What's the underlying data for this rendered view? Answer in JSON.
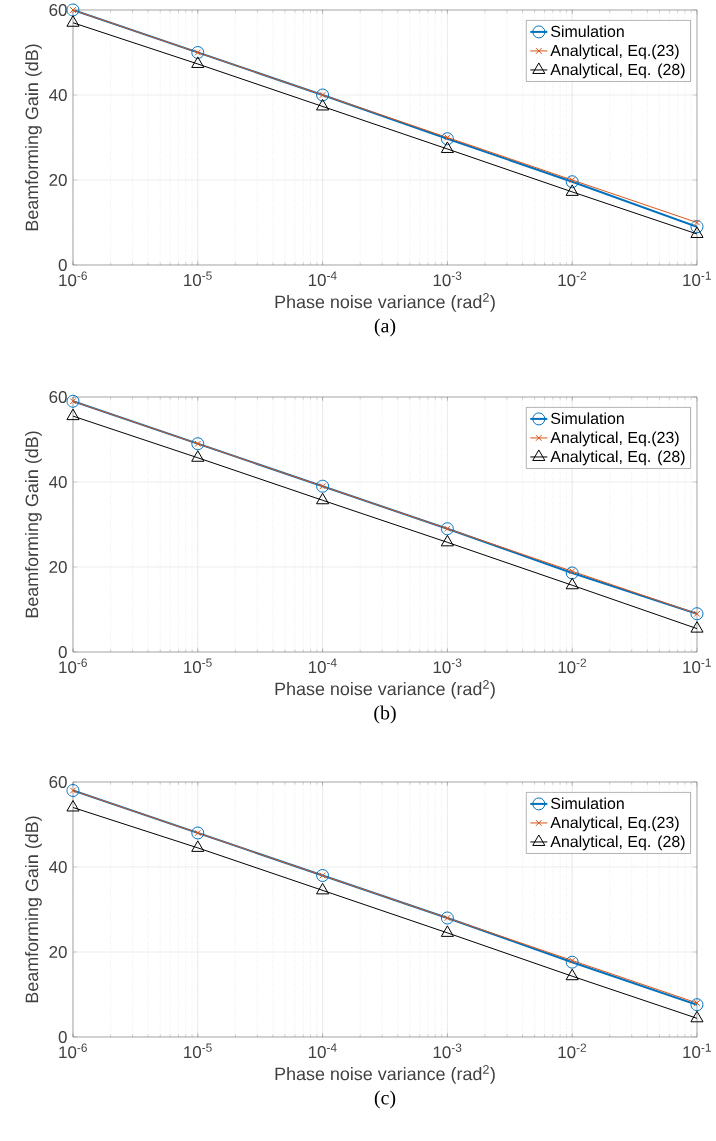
{
  "chart_data": [
    {
      "type": "line",
      "xlabel": "Phase noise variance (rad$^{2}$)",
      "ylabel": "Beamforming Gain (dB)",
      "annotations": [
        "(a)"
      ],
      "x": [
        1e-06,
        1e-05,
        0.0001,
        0.001,
        0.01,
        0.1
      ],
      "log": "x",
      "grid": true,
      "legend": "top right",
      "xlim": [
        1e-06,
        0.1
      ],
      "ylim": [
        0,
        60
      ],
      "xticks": [
        {
          "value": 1e-06,
          "label": "10$^{-6}$"
        },
        {
          "value": 1e-05,
          "label": "10$^{-5}$"
        },
        {
          "value": 0.0001,
          "label": "10$^{-4}$"
        },
        {
          "value": 0.001,
          "label": "10$^{-3}$"
        },
        {
          "value": 0.01,
          "label": "10$^{-2}$"
        },
        {
          "value": 0.1,
          "label": "10$^{-1}$"
        }
      ],
      "yticks": [
        0,
        20,
        40,
        60
      ],
      "series": [
        {
          "name": "Simulation",
          "color": "#0072bd",
          "marker": "circle",
          "values": [
            60,
            50,
            40,
            29.7,
            19.6,
            9
          ]
        },
        {
          "name": "Analytical, Eq.(23)",
          "color": "#d95319",
          "marker": "cross",
          "values": [
            60,
            50,
            40,
            30,
            20,
            10
          ]
        },
        {
          "name": "Analytical, Eq. (28)",
          "color": "#000000",
          "marker": "triangle",
          "values": [
            57,
            47.3,
            37.3,
            27.3,
            17.2,
            7.3
          ]
        }
      ]
    },
    {
      "type": "line",
      "xlabel": "Phase noise variance (rad$^{2}$)",
      "ylabel": "Beamforming Gain (dB)",
      "annotations": [
        "(b)"
      ],
      "x": [
        1e-06,
        1e-05,
        0.0001,
        0.001,
        0.01,
        0.1
      ],
      "log": "x",
      "grid": true,
      "legend": "top right",
      "xlim": [
        1e-06,
        0.1
      ],
      "ylim": [
        0,
        60
      ],
      "xticks": [
        {
          "value": 1e-06,
          "label": "10$^{-6}$"
        },
        {
          "value": 1e-05,
          "label": "10$^{-5}$"
        },
        {
          "value": 0.0001,
          "label": "10$^{-4}$"
        },
        {
          "value": 0.001,
          "label": "10$^{-3}$"
        },
        {
          "value": 0.01,
          "label": "10$^{-2}$"
        },
        {
          "value": 0.1,
          "label": "10$^{-1}$"
        }
      ],
      "yticks": [
        0,
        20,
        40,
        60
      ],
      "series": [
        {
          "name": "Simulation",
          "color": "#0072bd",
          "marker": "circle",
          "values": [
            59,
            49,
            39,
            29,
            18.6,
            9
          ]
        },
        {
          "name": "Analytical, Eq.(23)",
          "color": "#d95319",
          "marker": "cross",
          "values": [
            59,
            49,
            39,
            29,
            19,
            9
          ]
        },
        {
          "name": "Analytical, Eq. (28)",
          "color": "#000000",
          "marker": "triangle",
          "values": [
            55.5,
            45.7,
            35.7,
            25.8,
            15.7,
            5.5
          ]
        }
      ]
    },
    {
      "type": "line",
      "xlabel": "Phase noise variance (rad$^{2}$)",
      "ylabel": "Beamforming Gain (dB)",
      "annotations": [
        "(c)"
      ],
      "x": [
        1e-06,
        1e-05,
        0.0001,
        0.001,
        0.01,
        0.1
      ],
      "log": "x",
      "grid": true,
      "legend": "top right",
      "xlim": [
        1e-06,
        0.1
      ],
      "ylim": [
        0,
        60
      ],
      "xticks": [
        {
          "value": 1e-06,
          "label": "10$^{-6}$"
        },
        {
          "value": 1e-05,
          "label": "10$^{-5}$"
        },
        {
          "value": 0.0001,
          "label": "10$^{-4}$"
        },
        {
          "value": 0.001,
          "label": "10$^{-3}$"
        },
        {
          "value": 0.01,
          "label": "10$^{-2}$"
        },
        {
          "value": 0.1,
          "label": "10$^{-1}$"
        }
      ],
      "yticks": [
        0,
        20,
        40,
        60
      ],
      "series": [
        {
          "name": "Simulation",
          "color": "#0072bd",
          "marker": "circle",
          "values": [
            58,
            48,
            38,
            28,
            17.6,
            7.6
          ]
        },
        {
          "name": "Analytical, Eq.(23)",
          "color": "#d95319",
          "marker": "cross",
          "values": [
            58,
            48,
            38,
            28,
            18,
            8
          ]
        },
        {
          "name": "Analytical, Eq. (28)",
          "color": "#000000",
          "marker": "triangle",
          "values": [
            54,
            44.5,
            34.5,
            24.5,
            14.3,
            4.4
          ]
        }
      ]
    }
  ]
}
